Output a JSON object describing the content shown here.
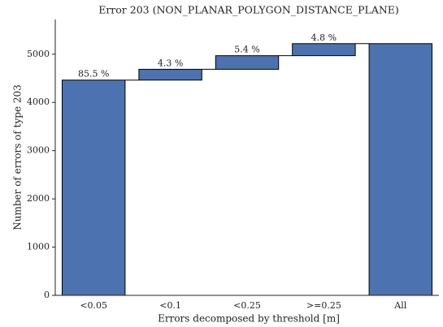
{
  "chart_data": {
    "type": "waterfall",
    "title": "Error 203 (NON_PLANAR_POLYGON_DISTANCE_PLANE)",
    "xlabel": "Errors decomposed by threshold [m]",
    "ylabel": "Number of errors of type 203",
    "categories": [
      "<0.05",
      "<0.1",
      "<0.25",
      ">=0.25",
      "All"
    ],
    "values": [
      4463,
      224,
      282,
      250,
      5219
    ],
    "value_labels": [
      "85.5 %",
      "4.3 %",
      "5.4 %",
      "4.8 %",
      null
    ],
    "color": "#4c72b0",
    "ylim": [
      0,
      5720
    ],
    "yticks": [
      0,
      1000,
      2000,
      3000,
      4000,
      5000
    ]
  }
}
